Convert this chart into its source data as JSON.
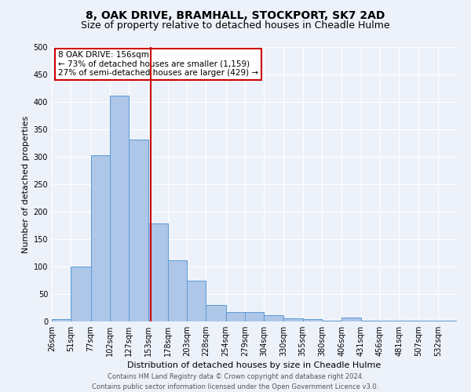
{
  "title1": "8, OAK DRIVE, BRAMHALL, STOCKPORT, SK7 2AD",
  "title2": "Size of property relative to detached houses in Cheadle Hulme",
  "xlabel": "Distribution of detached houses by size in Cheadle Hulme",
  "ylabel": "Number of detached properties",
  "bin_labels": [
    "26sqm",
    "51sqm",
    "77sqm",
    "102sqm",
    "127sqm",
    "153sqm",
    "178sqm",
    "203sqm",
    "228sqm",
    "254sqm",
    "279sqm",
    "304sqm",
    "330sqm",
    "355sqm",
    "380sqm",
    "406sqm",
    "431sqm",
    "456sqm",
    "481sqm",
    "507sqm",
    "532sqm"
  ],
  "bin_edges": [
    26,
    51,
    77,
    102,
    127,
    153,
    178,
    203,
    228,
    254,
    279,
    304,
    330,
    355,
    380,
    406,
    431,
    456,
    481,
    507,
    532,
    557
  ],
  "counts": [
    5,
    100,
    303,
    412,
    332,
    179,
    112,
    75,
    30,
    17,
    17,
    12,
    6,
    4,
    1,
    7,
    1,
    1,
    2,
    1,
    1
  ],
  "bar_color": "#aec6e8",
  "bar_edge_color": "#5b9bd5",
  "property_size": 156,
  "vline_color": "#cc0000",
  "annotation_line1": "8 OAK DRIVE: 156sqm",
  "annotation_line2": "← 73% of detached houses are smaller (1,159)",
  "annotation_line3": "27% of semi-detached houses are larger (429) →",
  "annotation_box_color": "white",
  "annotation_box_edge_color": "#cc0000",
  "ylim": [
    0,
    500
  ],
  "yticks": [
    0,
    50,
    100,
    150,
    200,
    250,
    300,
    350,
    400,
    450,
    500
  ],
  "footer1": "Contains HM Land Registry data © Crown copyright and database right 2024.",
  "footer2": "Contains public sector information licensed under the Open Government Licence v3.0.",
  "bg_color": "#edf2fa",
  "grid_color": "#ffffff",
  "title1_fontsize": 10,
  "title2_fontsize": 9,
  "axis_fontsize": 8,
  "tick_fontsize": 7,
  "annotation_fontsize": 7.5,
  "footer_fontsize": 6
}
